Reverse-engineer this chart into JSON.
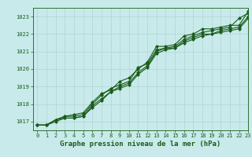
{
  "title": "",
  "xlabel": "Graphe pression niveau de la mer (hPa)",
  "ylabel": "",
  "bg_color": "#c8eaea",
  "grid_color": "#b0d4d4",
  "line_color": "#1a5c1a",
  "xlim": [
    -0.5,
    23
  ],
  "ylim": [
    1016.5,
    1023.5
  ],
  "yticks": [
    1017,
    1018,
    1019,
    1020,
    1021,
    1022,
    1023
  ],
  "xticks": [
    0,
    1,
    2,
    3,
    4,
    5,
    6,
    7,
    8,
    9,
    10,
    11,
    12,
    13,
    14,
    15,
    16,
    17,
    18,
    19,
    20,
    21,
    22,
    23
  ],
  "series": [
    [
      1016.8,
      1016.8,
      1017.1,
      1017.3,
      1017.3,
      1017.4,
      1018.0,
      1018.5,
      1018.9,
      1019.1,
      1019.3,
      1020.1,
      1020.3,
      1021.1,
      1021.2,
      1021.3,
      1021.7,
      1021.9,
      1022.1,
      1022.2,
      1022.3,
      1022.4,
      1022.9,
      1023.2
    ],
    [
      1016.8,
      1016.8,
      1017.0,
      1017.2,
      1017.2,
      1017.3,
      1017.9,
      1018.3,
      1018.7,
      1019.0,
      1019.2,
      1019.8,
      1020.2,
      1021.0,
      1021.2,
      1021.2,
      1021.6,
      1021.8,
      1022.0,
      1022.0,
      1022.2,
      1022.3,
      1022.4,
      1023.0
    ],
    [
      1016.8,
      1016.8,
      1017.1,
      1017.3,
      1017.4,
      1017.5,
      1018.1,
      1018.6,
      1018.8,
      1019.3,
      1019.5,
      1020.0,
      1020.4,
      1021.3,
      1021.3,
      1021.4,
      1021.9,
      1022.0,
      1022.3,
      1022.3,
      1022.4,
      1022.5,
      1022.5,
      1023.3
    ],
    [
      1016.8,
      1016.8,
      1017.1,
      1017.2,
      1017.2,
      1017.3,
      1017.8,
      1018.2,
      1018.7,
      1018.9,
      1019.1,
      1019.7,
      1020.1,
      1020.9,
      1021.1,
      1021.2,
      1021.5,
      1021.7,
      1021.9,
      1022.0,
      1022.1,
      1022.2,
      1022.3,
      1022.9
    ]
  ],
  "marker": "D",
  "markersize": 2.0,
  "linewidth": 0.8,
  "tick_fontsize": 5.0,
  "xlabel_fontsize": 6.5,
  "fig_width": 3.2,
  "fig_height": 2.0,
  "dpi": 100
}
